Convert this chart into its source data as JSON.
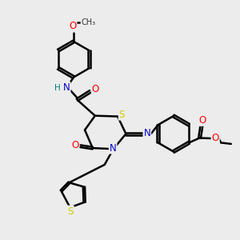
{
  "bg_color": "#ececec",
  "bond_color": "#000000",
  "bond_width": 1.8,
  "atom_colors": {
    "O": "#ff0000",
    "N": "#0000cc",
    "S": "#cccc00",
    "NH_color": "#008080",
    "C": "#000000"
  },
  "font_size": 8.5,
  "dbo": 0.055
}
